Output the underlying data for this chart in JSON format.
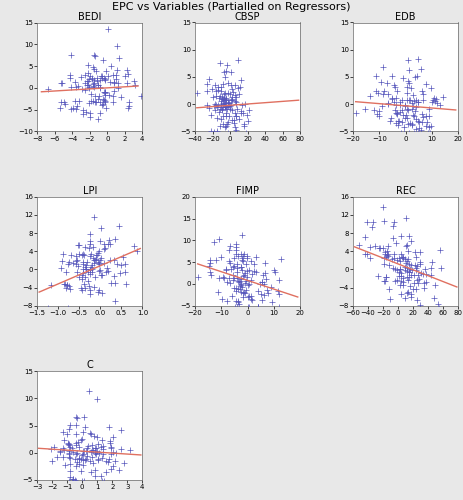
{
  "title": "EPC vs Variables (Partialled on Regressors)",
  "title_fontsize": 8,
  "subplots": [
    {
      "label": "BEDI",
      "xlim": [
        -8,
        4
      ],
      "ylim": [
        -10,
        15
      ],
      "xticks": [
        -8,
        -6,
        -4,
        -2,
        0,
        2,
        4
      ],
      "yticks": [
        -10,
        -5,
        0,
        5,
        10,
        15
      ],
      "slope": 0.12,
      "intercept": 0.0,
      "x_range": [
        -7.5,
        3.5
      ],
      "seed": 42,
      "n": 120,
      "x_center": -1.0,
      "x_spread": 2.2,
      "y_spread": 3.5
    },
    {
      "label": "CBSP",
      "xlim": [
        -40,
        80
      ],
      "ylim": [
        -5,
        15
      ],
      "xticks": [
        -40,
        -20,
        0,
        20,
        40,
        60,
        80
      ],
      "yticks": [
        -5,
        0,
        5,
        10,
        15
      ],
      "slope": 0.012,
      "intercept": -0.2,
      "x_range": [
        -38,
        78
      ],
      "seed": 43,
      "n": 130,
      "x_center": -4.0,
      "x_spread": 11.0,
      "y_spread": 3.0
    },
    {
      "label": "EDB",
      "xlim": [
        -20,
        20
      ],
      "ylim": [
        -5,
        15
      ],
      "xticks": [
        -20,
        -10,
        0,
        10,
        20
      ],
      "yticks": [
        -5,
        0,
        5,
        10,
        15
      ],
      "slope": -0.04,
      "intercept": -0.3,
      "x_range": [
        -19,
        19
      ],
      "seed": 44,
      "n": 120,
      "x_center": 1.0,
      "x_spread": 6.5,
      "y_spread": 3.0
    },
    {
      "label": "LPI",
      "xlim": [
        -1.5,
        1.0
      ],
      "ylim": [
        -8,
        16
      ],
      "xticks": [
        -1.5,
        -1.0,
        -0.5,
        0.0,
        0.5,
        1.0
      ],
      "yticks": [
        -8,
        -4,
        0,
        4,
        8,
        12,
        16
      ],
      "slope": 4.0,
      "intercept": 0.8,
      "x_range": [
        -1.45,
        0.95
      ],
      "seed": 45,
      "n": 120,
      "x_center": -0.15,
      "x_spread": 0.42,
      "y_spread": 3.8
    },
    {
      "label": "FIMP",
      "xlim": [
        -20,
        20
      ],
      "ylim": [
        -5,
        20
      ],
      "xticks": [
        -20,
        -10,
        0,
        10,
        20
      ],
      "yticks": [
        -5,
        0,
        5,
        10,
        15,
        20
      ],
      "slope": -0.2,
      "intercept": 0.8,
      "x_range": [
        -19,
        19
      ],
      "seed": 46,
      "n": 130,
      "x_center": -1.5,
      "x_spread": 6.5,
      "y_spread": 4.0
    },
    {
      "label": "REC",
      "xlim": [
        -60,
        80
      ],
      "ylim": [
        -8,
        16
      ],
      "xticks": [
        -60,
        -40,
        -20,
        0,
        20,
        40,
        60,
        80
      ],
      "yticks": [
        -8,
        -4,
        0,
        4,
        8,
        12,
        16
      ],
      "slope": -0.065,
      "intercept": 1.2,
      "x_range": [
        -58,
        78
      ],
      "seed": 47,
      "n": 130,
      "x_center": 5.0,
      "x_spread": 22.0,
      "y_spread": 3.8
    },
    {
      "label": "C",
      "xlim": [
        -3,
        4
      ],
      "ylim": [
        -5,
        15
      ],
      "xticks": [
        -3,
        -2,
        -1,
        0,
        1,
        2,
        3,
        4
      ],
      "yticks": [
        -5,
        0,
        5,
        10,
        15
      ],
      "slope": -0.18,
      "intercept": 0.3,
      "x_range": [
        -2.9,
        3.9
      ],
      "seed": 48,
      "n": 130,
      "x_center": 0.2,
      "x_spread": 1.1,
      "y_spread": 2.8
    }
  ],
  "dot_color": "#5555bb",
  "line_color": "#e07060",
  "bg_color": "#e8e8e8",
  "plot_bg": "#ffffff",
  "marker_size": 10,
  "line_width": 1.0
}
